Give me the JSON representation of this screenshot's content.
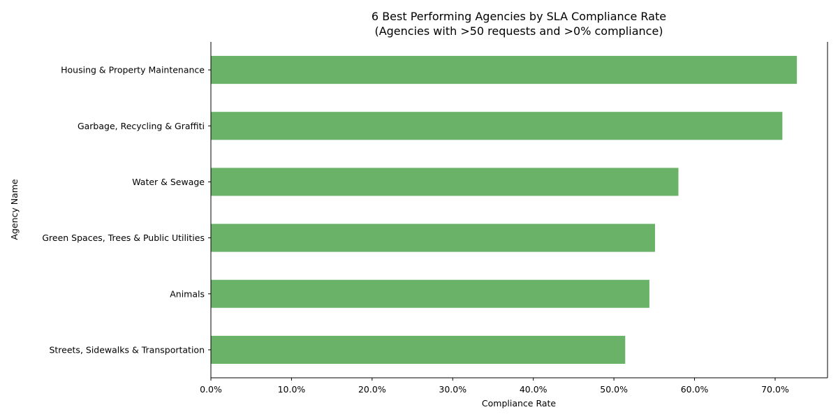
{
  "chart_data": {
    "type": "bar",
    "orientation": "horizontal",
    "title": "6 Best Performing Agencies by SLA Compliance Rate",
    "subtitle": "(Agencies with >50 requests and >0% compliance)",
    "xlabel": "Compliance Rate",
    "ylabel": "Agency Name",
    "xlim": [
      0,
      0.765
    ],
    "x_ticks": [
      0,
      0.1,
      0.2,
      0.3,
      0.4,
      0.5,
      0.6,
      0.7
    ],
    "x_tick_labels": [
      "0.0%",
      "10.0%",
      "20.0%",
      "30.0%",
      "40.0%",
      "50.0%",
      "60.0%",
      "70.0%"
    ],
    "categories": [
      "Housing & Property Maintenance",
      "Garbage, Recycling & Graffiti",
      "Water & Sewage",
      "Green Spaces, Trees & Public Utilities",
      "Animals",
      "Streets, Sidewalks & Transportation"
    ],
    "values": [
      0.727,
      0.709,
      0.58,
      0.551,
      0.544,
      0.514
    ],
    "bar_color": "#69b267",
    "grid": false,
    "legend": "none"
  }
}
